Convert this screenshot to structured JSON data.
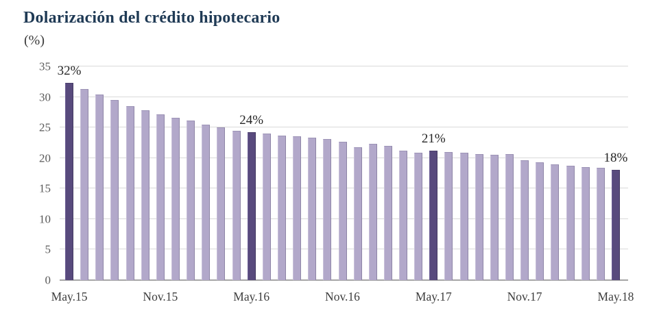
{
  "header": {
    "title": "Dolarización del crédito hipotecario",
    "subtitle": "(%)"
  },
  "colors": {
    "title": "#1f3a55",
    "bar_light": "#b2a8ca",
    "bar_dark": "#584a7d",
    "gridline": "#d9d9d9",
    "axis": "#a6a6a6",
    "tick_label": "#595959",
    "x_label": "#3d3d3d",
    "annotation": "#262626"
  },
  "chart_data": {
    "type": "bar",
    "title": "Dolarización del crédito hipotecario",
    "ylabel": "(%)",
    "xlabel": "",
    "ylim": [
      0,
      35
    ],
    "yticks": [
      0,
      5,
      10,
      15,
      20,
      25,
      30,
      35
    ],
    "grid": true,
    "legend": null,
    "values": [
      32.2,
      31.2,
      30.3,
      29.4,
      28.4,
      27.7,
      27.0,
      26.5,
      26.0,
      25.4,
      24.9,
      24.4,
      24.1,
      23.9,
      23.6,
      23.5,
      23.2,
      23.0,
      22.6,
      21.7,
      22.2,
      21.9,
      21.1,
      20.8,
      21.1,
      20.9,
      20.7,
      20.5,
      20.4,
      20.5,
      19.5,
      19.2,
      18.9,
      18.6,
      18.4,
      18.3,
      18.0
    ],
    "highlighted_indices": [
      0,
      12,
      24,
      36
    ],
    "annotations": [
      {
        "index": 0,
        "text": "32%"
      },
      {
        "index": 12,
        "text": "24%"
      },
      {
        "index": 24,
        "text": "21%"
      },
      {
        "index": 36,
        "text": "18%"
      }
    ],
    "x_tick_labels": [
      {
        "index": 0,
        "text": "May.15"
      },
      {
        "index": 6,
        "text": "Nov.15"
      },
      {
        "index": 12,
        "text": "May.16"
      },
      {
        "index": 18,
        "text": "Nov.16"
      },
      {
        "index": 24,
        "text": "May.17"
      },
      {
        "index": 30,
        "text": "Nov.17"
      },
      {
        "index": 36,
        "text": "May.18"
      }
    ]
  }
}
